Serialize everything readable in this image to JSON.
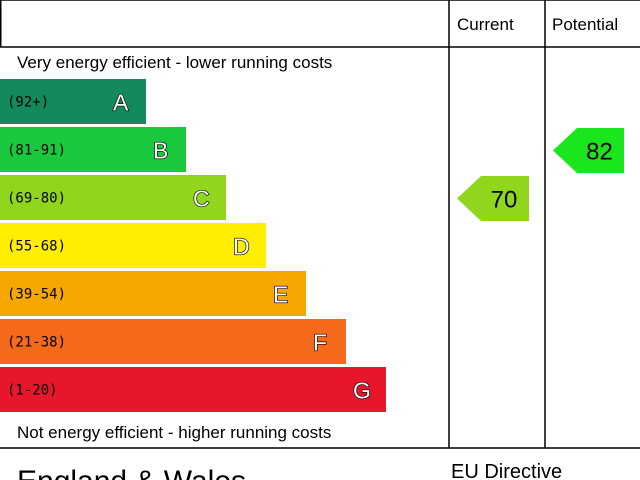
{
  "chart_data": {
    "type": "bar",
    "header": {
      "current_label": "Current",
      "potential_label": "Potential"
    },
    "top_caption": "Very energy efficient - lower running costs",
    "bottom_caption": "Not energy efficient - higher running costs",
    "bands": [
      {
        "letter": "A",
        "range": "(92+)",
        "color": "#138a5b",
        "value": 92
      },
      {
        "letter": "B",
        "range": "(81-91)",
        "color": "#19c83c",
        "value": 81
      },
      {
        "letter": "C",
        "range": "(69-80)",
        "color": "#8fd61c",
        "value": 69
      },
      {
        "letter": "D",
        "range": "(55-68)",
        "color": "#ffee00",
        "value": 55
      },
      {
        "letter": "E",
        "range": "(39-54)",
        "color": "#f6a700",
        "value": 39
      },
      {
        "letter": "F",
        "range": "(21-38)",
        "color": "#f46a1a",
        "value": 21
      },
      {
        "letter": "G",
        "range": "(1-20)",
        "color": "#e8162a",
        "value": 1
      }
    ],
    "current": {
      "value": 70,
      "band": "C",
      "color": "#8fd61c"
    },
    "potential": {
      "value": 82,
      "band": "B",
      "color": "#19e61c"
    }
  },
  "footer": {
    "region": "England & Wales",
    "directive": "EU Directive"
  }
}
